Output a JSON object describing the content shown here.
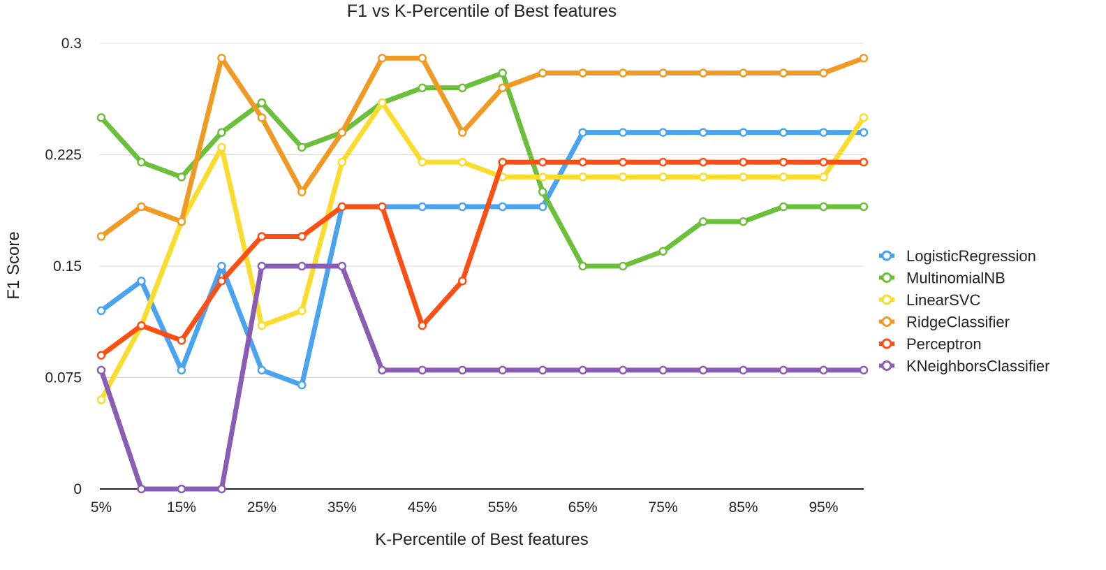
{
  "chart_data": {
    "type": "line",
    "title": "F1 vs K-Percentile of Best features",
    "xlabel": "K-Percentile of Best features",
    "ylabel": "F1 Score",
    "x": [
      "5%",
      "10%",
      "15%",
      "20%",
      "25%",
      "30%",
      "35%",
      "40%",
      "45%",
      "50%",
      "55%",
      "60%",
      "65%",
      "70%",
      "75%",
      "80%",
      "85%",
      "90%",
      "95%",
      "100%"
    ],
    "x_tick_labels": [
      "5%",
      "15%",
      "25%",
      "35%",
      "45%",
      "55%",
      "65%",
      "75%",
      "85%",
      "95%"
    ],
    "y_tick_labels": [
      "0",
      "0.075",
      "0.15",
      "0.225",
      "0.3"
    ],
    "ylim": [
      0,
      0.3
    ],
    "grid": "horizontal",
    "legend_position": "right",
    "series": [
      {
        "name": "LogisticRegression",
        "color": "#4aa3f0",
        "values": [
          0.12,
          0.14,
          0.08,
          0.15,
          0.08,
          0.07,
          0.19,
          0.19,
          0.19,
          0.19,
          0.19,
          0.19,
          0.24,
          0.24,
          0.24,
          0.24,
          0.24,
          0.24,
          0.24,
          0.24
        ]
      },
      {
        "name": "MultinomialNB",
        "color": "#6cbf3a",
        "values": [
          0.25,
          0.22,
          0.21,
          0.24,
          0.26,
          0.23,
          0.24,
          0.26,
          0.27,
          0.27,
          0.28,
          0.2,
          0.15,
          0.15,
          0.16,
          0.18,
          0.18,
          0.19,
          0.19,
          0.19
        ]
      },
      {
        "name": "LinearSVC",
        "color": "#f9dc2c",
        "values": [
          0.06,
          0.11,
          0.18,
          0.23,
          0.11,
          0.12,
          0.22,
          0.26,
          0.22,
          0.22,
          0.21,
          0.21,
          0.21,
          0.21,
          0.21,
          0.21,
          0.21,
          0.21,
          0.21,
          0.25
        ]
      },
      {
        "name": "RidgeClassifier",
        "color": "#f09a23",
        "values": [
          0.17,
          0.19,
          0.18,
          0.29,
          0.25,
          0.2,
          0.24,
          0.29,
          0.29,
          0.24,
          0.27,
          0.28,
          0.28,
          0.28,
          0.28,
          0.28,
          0.28,
          0.28,
          0.28,
          0.29
        ]
      },
      {
        "name": "Perceptron",
        "color": "#fb4f14",
        "values": [
          0.09,
          0.11,
          0.1,
          0.14,
          0.17,
          0.17,
          0.19,
          0.19,
          0.11,
          0.14,
          0.22,
          0.22,
          0.22,
          0.22,
          0.22,
          0.22,
          0.22,
          0.22,
          0.22,
          0.22
        ]
      },
      {
        "name": "KNeighborsClassifier",
        "color": "#8a5db5",
        "values": [
          0.08,
          0,
          0,
          0,
          0.15,
          0.15,
          0.15,
          0.08,
          0.08,
          0.08,
          0.08,
          0.08,
          0.08,
          0.08,
          0.08,
          0.08,
          0.08,
          0.08,
          0.08,
          0.08
        ]
      }
    ]
  }
}
